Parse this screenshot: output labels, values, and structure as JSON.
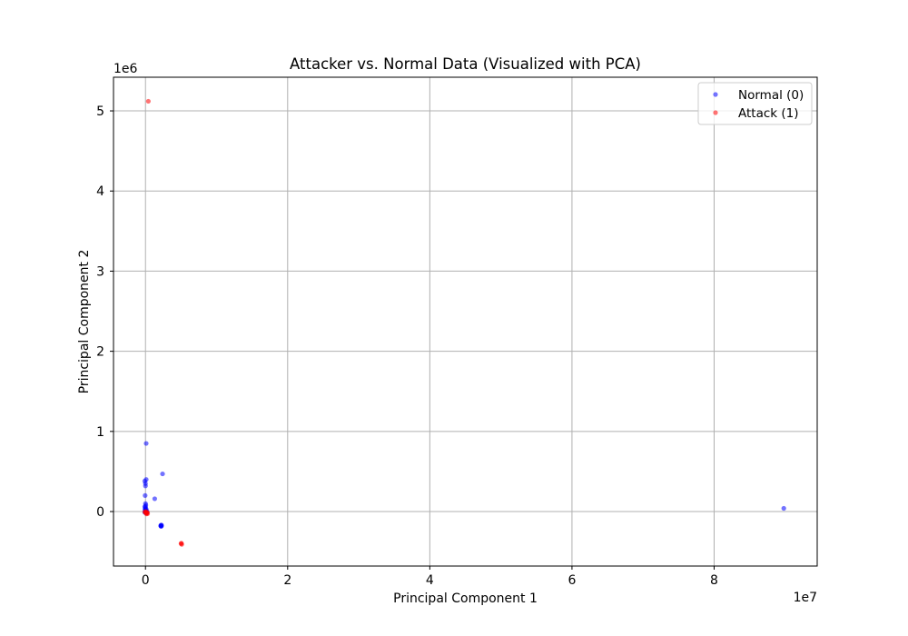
{
  "chart_data": {
    "type": "scatter",
    "title": "Attacker vs. Normal Data (Visualized with PCA)",
    "xlabel": "Principal Component 1",
    "ylabel": "Principal Component 2",
    "x_multiplier": "1e7",
    "y_multiplier": "1e6",
    "xlim": [
      -4500000,
      94500000
    ],
    "ylim": [
      -680000,
      5420000
    ],
    "x_ticks": [
      0,
      20000000,
      40000000,
      60000000,
      80000000
    ],
    "x_tick_labels": [
      "0",
      "2",
      "4",
      "6",
      "8"
    ],
    "y_ticks": [
      0,
      1000000,
      2000000,
      3000000,
      4000000,
      5000000
    ],
    "y_tick_labels": [
      "0",
      "1",
      "2",
      "3",
      "4",
      "5"
    ],
    "grid": true,
    "legend_position": "top-right",
    "series": [
      {
        "name": "Normal (0)",
        "color": "#0000ff",
        "alpha": 0.55,
        "points": [
          [
            89800000,
            40000
          ],
          [
            2400000,
            470000
          ],
          [
            1300000,
            160000
          ],
          [
            100000,
            850000
          ],
          [
            100000,
            400000
          ],
          [
            -100000,
            380000
          ],
          [
            0,
            350000
          ],
          [
            0,
            320000
          ],
          [
            -50000,
            200000
          ],
          [
            0,
            100000
          ],
          [
            50000,
            80000
          ],
          [
            -100000,
            60000
          ],
          [
            0,
            40000
          ],
          [
            100000,
            30000
          ],
          [
            -50000,
            20000
          ],
          [
            50000,
            10000
          ],
          [
            0,
            0
          ],
          [
            -100000,
            -10000
          ],
          [
            100000,
            -20000
          ],
          [
            200000,
            5000
          ],
          [
            0,
            60000
          ],
          [
            -50000,
            30000
          ],
          [
            2150000,
            -180000
          ],
          [
            2200000,
            -170000
          ],
          [
            2250000,
            -180000
          ],
          [
            2150000,
            -175000
          ],
          [
            2250000,
            -170000
          ],
          [
            2200000,
            -185000
          ]
        ]
      },
      {
        "name": "Attack (1)",
        "color": "#ff0000",
        "alpha": 0.55,
        "points": [
          [
            400000,
            5120000
          ],
          [
            5000000,
            -400000
          ],
          [
            5100000,
            -410000
          ],
          [
            5050000,
            -395000
          ],
          [
            0,
            -10000
          ],
          [
            100000,
            -20000
          ],
          [
            -100000,
            -5000
          ],
          [
            200000,
            -15000
          ],
          [
            300000,
            -25000
          ],
          [
            50000,
            0
          ],
          [
            150000,
            -30000
          ],
          [
            250000,
            -10000
          ]
        ]
      }
    ]
  }
}
